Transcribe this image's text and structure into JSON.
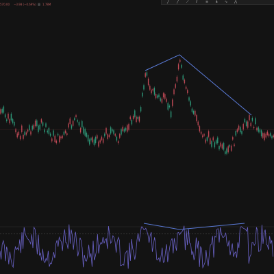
{
  "header": {
    "price_text": "570.00",
    "change_text": "−3.98 (−0.69%)",
    "volume_label": "量",
    "volume_value": "1.78M"
  },
  "toolbar": {
    "tools": [
      "line-tool",
      "ray-tool",
      "extended-line-tool",
      "parallel-channel-tool",
      "fib-tool",
      "pitchfork-tool",
      "pattern-tool",
      "more-tool"
    ]
  },
  "colors": {
    "background": "#131313",
    "up_candle": "#2e9a7a",
    "down_candle": "#c04a56",
    "trendline": "#5b7bd8",
    "oscillator": "#6b63c9",
    "grid": "#2a2a2a",
    "price_line": "#6e3a3a"
  }
}
